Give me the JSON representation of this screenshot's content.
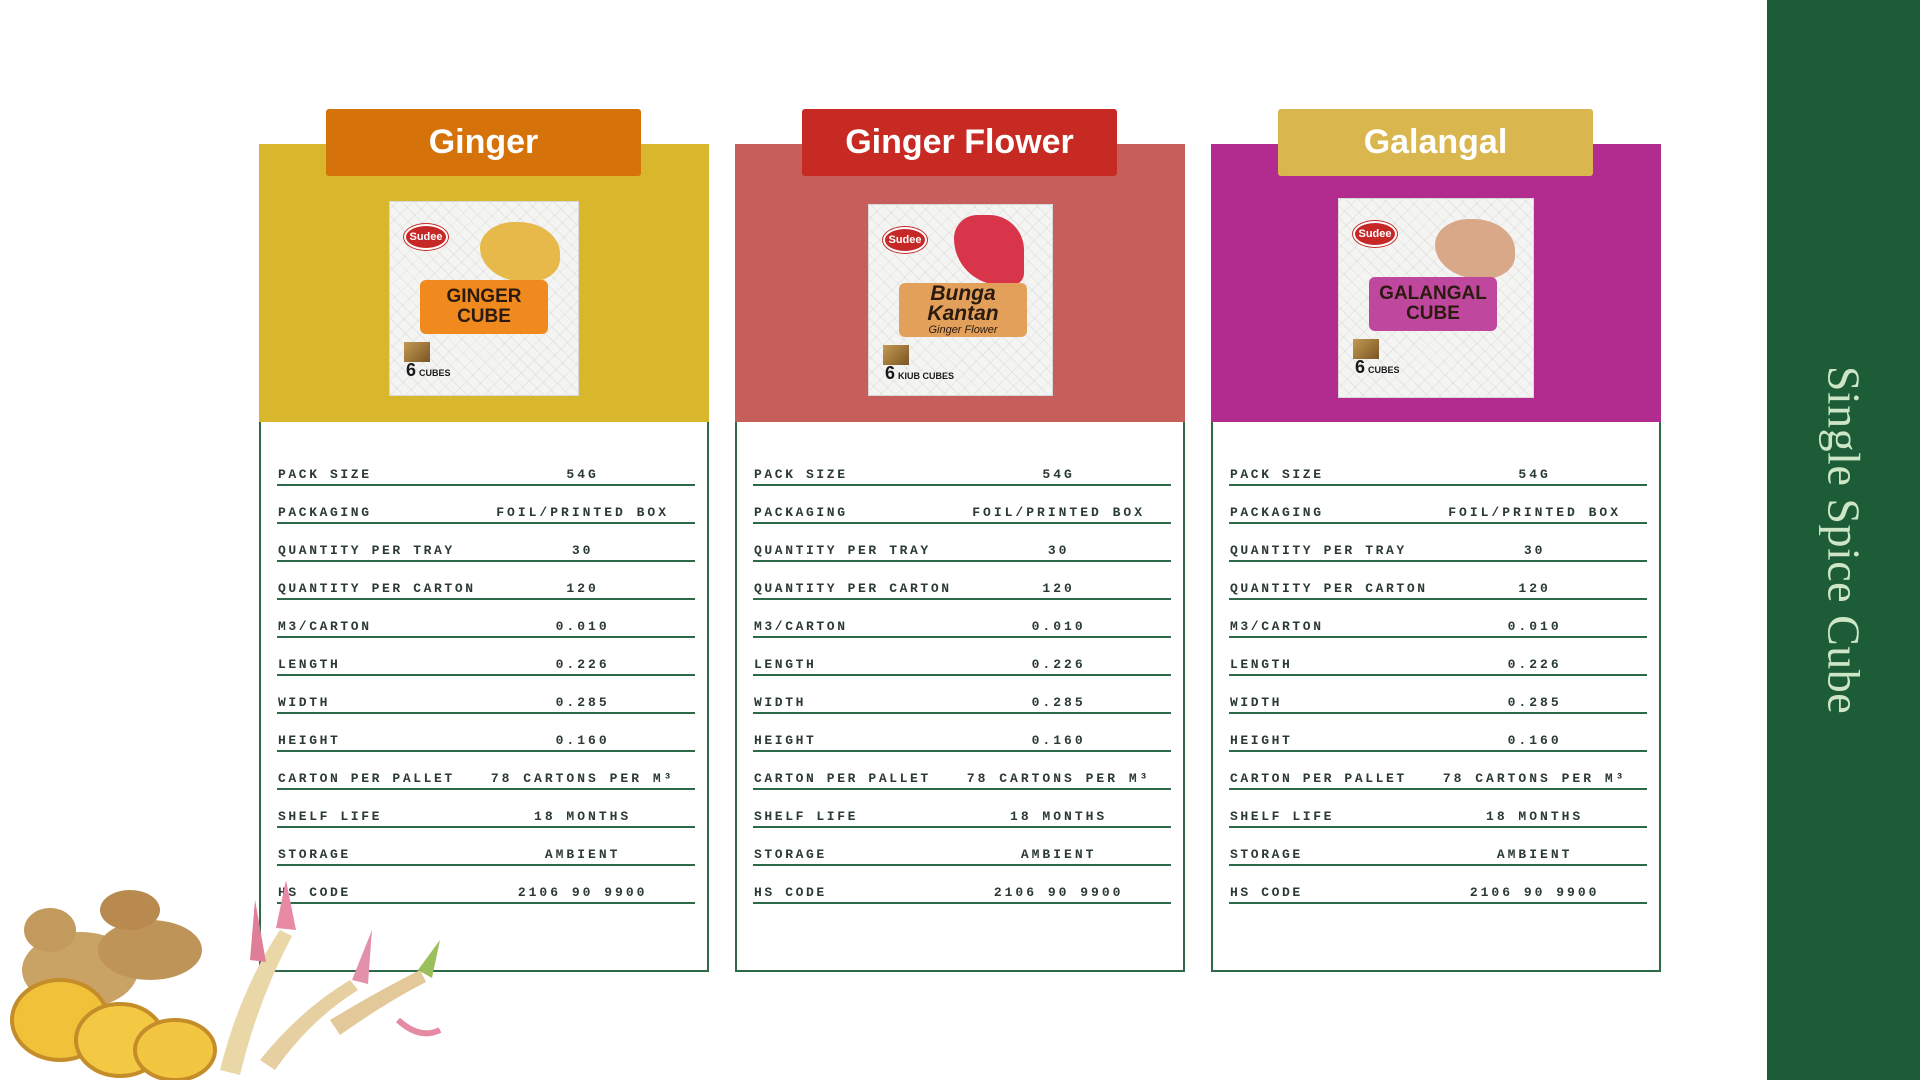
{
  "sidebar": {
    "title": "Single Spice Cube"
  },
  "spec_labels": [
    "PACK SIZE",
    "PACKAGING",
    "QUANTITY PER TRAY",
    "QUANTITY PER CARTON",
    "M3/CARTON",
    "LENGTH",
    "WIDTH",
    "HEIGHT",
    "CARTON PER PALLET",
    "SHELF LIFE",
    "STORAGE",
    "HS CODE"
  ],
  "cards": [
    {
      "title": "Ginger",
      "tab_color": "#d5720a",
      "panel_color": "#d9b72d",
      "pack": {
        "brand": "Sudee",
        "line1": "GINGER",
        "line2": "CUBE",
        "sub": "",
        "count": "6",
        "count_unit": "CUBES",
        "label_color": "#f08a1e",
        "produce_color": "#e7b84a"
      },
      "values": [
        "54G",
        "FOIL/PRINTED BOX",
        "30",
        "120",
        "0.010",
        "0.226",
        "0.285",
        "0.160",
        "78 CARTONS PER M³",
        "18 MONTHS",
        "AMBIENT",
        "2106 90 9900"
      ]
    },
    {
      "title": "Ginger Flower",
      "tab_color": "#c62a23",
      "panel_color": "#c65f5b",
      "pack": {
        "brand": "Sudee",
        "line1": "Bunga Kantan",
        "line2": "",
        "sub": "Ginger Flower",
        "count": "6",
        "count_unit": "KIUB CUBES",
        "label_color": "#e2a05a",
        "produce_color": "#d8344a"
      },
      "values": [
        "54G",
        "FOIL/PRINTED BOX",
        "30",
        "120",
        "0.010",
        "0.226",
        "0.285",
        "0.160",
        "78 CARTONS PER M³",
        "18 MONTHS",
        "AMBIENT",
        "2106 90 9900"
      ]
    },
    {
      "title": "Galangal",
      "tab_color": "#dab74e",
      "panel_color": "#b22b8f",
      "pack": {
        "brand": "Sudee",
        "line1": "GALANGAL",
        "line2": "CUBE",
        "sub": "",
        "count": "6",
        "count_unit": "CUBES",
        "label_color": "#c0479e",
        "produce_color": "#d9a889"
      },
      "values": [
        "54G",
        "FOIL/PRINTED BOX",
        "30",
        "120",
        "0.010",
        "0.226",
        "0.285",
        "0.160",
        "78 CARTONS PER M³",
        "18 MONTHS",
        "AMBIENT",
        "2106 90 9900"
      ]
    }
  ]
}
